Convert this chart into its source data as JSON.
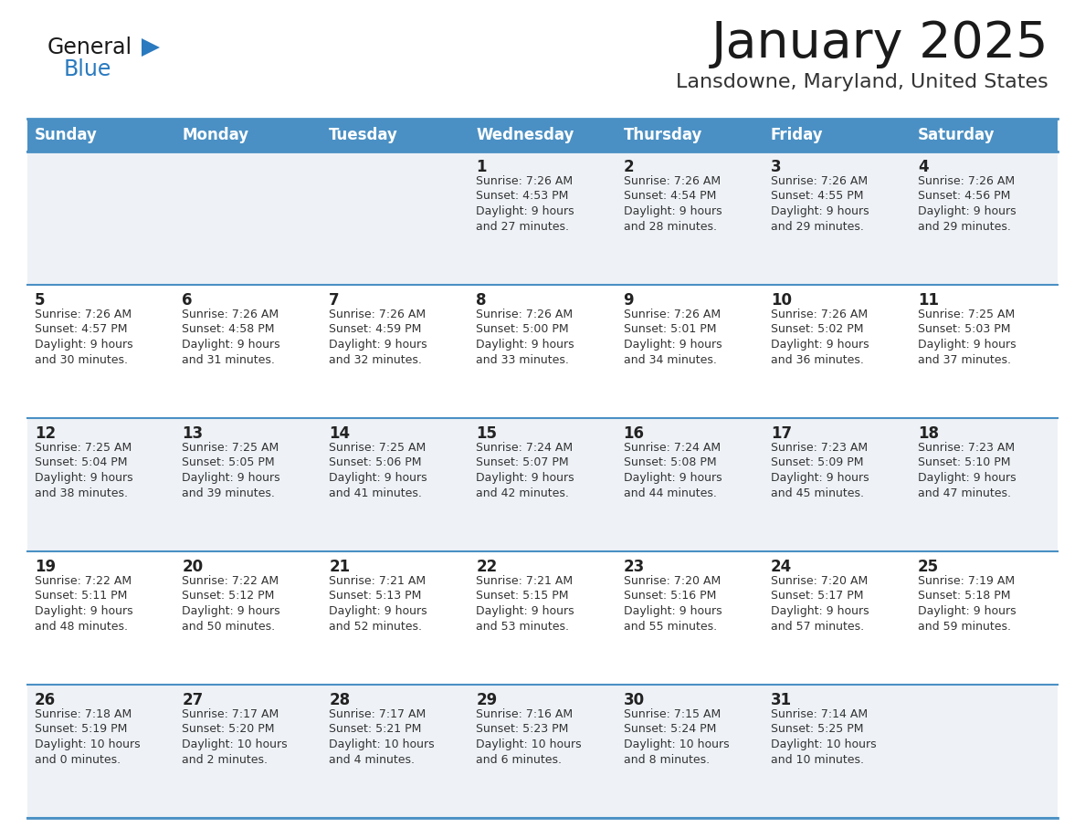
{
  "title": "January 2025",
  "subtitle": "Lansdowne, Maryland, United States",
  "days_of_week": [
    "Sunday",
    "Monday",
    "Tuesday",
    "Wednesday",
    "Thursday",
    "Friday",
    "Saturday"
  ],
  "header_bg": "#4a90c4",
  "header_text": "#ffffff",
  "row_bg_odd": "#eef2f7",
  "row_bg_even": "#ffffff",
  "cell_border": "#4a90c4",
  "day_number_color": "#222222",
  "day_text_color": "#333333",
  "title_color": "#1a1a1a",
  "subtitle_color": "#333333",
  "logo_general_color": "#1a1a1a",
  "logo_blue_color": "#2a7abf",
  "weeks": [
    {
      "days": [
        {
          "date": null,
          "info": null
        },
        {
          "date": null,
          "info": null
        },
        {
          "date": null,
          "info": null
        },
        {
          "date": "1",
          "info": "Sunrise: 7:26 AM\nSunset: 4:53 PM\nDaylight: 9 hours\nand 27 minutes."
        },
        {
          "date": "2",
          "info": "Sunrise: 7:26 AM\nSunset: 4:54 PM\nDaylight: 9 hours\nand 28 minutes."
        },
        {
          "date": "3",
          "info": "Sunrise: 7:26 AM\nSunset: 4:55 PM\nDaylight: 9 hours\nand 29 minutes."
        },
        {
          "date": "4",
          "info": "Sunrise: 7:26 AM\nSunset: 4:56 PM\nDaylight: 9 hours\nand 29 minutes."
        }
      ]
    },
    {
      "days": [
        {
          "date": "5",
          "info": "Sunrise: 7:26 AM\nSunset: 4:57 PM\nDaylight: 9 hours\nand 30 minutes."
        },
        {
          "date": "6",
          "info": "Sunrise: 7:26 AM\nSunset: 4:58 PM\nDaylight: 9 hours\nand 31 minutes."
        },
        {
          "date": "7",
          "info": "Sunrise: 7:26 AM\nSunset: 4:59 PM\nDaylight: 9 hours\nand 32 minutes."
        },
        {
          "date": "8",
          "info": "Sunrise: 7:26 AM\nSunset: 5:00 PM\nDaylight: 9 hours\nand 33 minutes."
        },
        {
          "date": "9",
          "info": "Sunrise: 7:26 AM\nSunset: 5:01 PM\nDaylight: 9 hours\nand 34 minutes."
        },
        {
          "date": "10",
          "info": "Sunrise: 7:26 AM\nSunset: 5:02 PM\nDaylight: 9 hours\nand 36 minutes."
        },
        {
          "date": "11",
          "info": "Sunrise: 7:25 AM\nSunset: 5:03 PM\nDaylight: 9 hours\nand 37 minutes."
        }
      ]
    },
    {
      "days": [
        {
          "date": "12",
          "info": "Sunrise: 7:25 AM\nSunset: 5:04 PM\nDaylight: 9 hours\nand 38 minutes."
        },
        {
          "date": "13",
          "info": "Sunrise: 7:25 AM\nSunset: 5:05 PM\nDaylight: 9 hours\nand 39 minutes."
        },
        {
          "date": "14",
          "info": "Sunrise: 7:25 AM\nSunset: 5:06 PM\nDaylight: 9 hours\nand 41 minutes."
        },
        {
          "date": "15",
          "info": "Sunrise: 7:24 AM\nSunset: 5:07 PM\nDaylight: 9 hours\nand 42 minutes."
        },
        {
          "date": "16",
          "info": "Sunrise: 7:24 AM\nSunset: 5:08 PM\nDaylight: 9 hours\nand 44 minutes."
        },
        {
          "date": "17",
          "info": "Sunrise: 7:23 AM\nSunset: 5:09 PM\nDaylight: 9 hours\nand 45 minutes."
        },
        {
          "date": "18",
          "info": "Sunrise: 7:23 AM\nSunset: 5:10 PM\nDaylight: 9 hours\nand 47 minutes."
        }
      ]
    },
    {
      "days": [
        {
          "date": "19",
          "info": "Sunrise: 7:22 AM\nSunset: 5:11 PM\nDaylight: 9 hours\nand 48 minutes."
        },
        {
          "date": "20",
          "info": "Sunrise: 7:22 AM\nSunset: 5:12 PM\nDaylight: 9 hours\nand 50 minutes."
        },
        {
          "date": "21",
          "info": "Sunrise: 7:21 AM\nSunset: 5:13 PM\nDaylight: 9 hours\nand 52 minutes."
        },
        {
          "date": "22",
          "info": "Sunrise: 7:21 AM\nSunset: 5:15 PM\nDaylight: 9 hours\nand 53 minutes."
        },
        {
          "date": "23",
          "info": "Sunrise: 7:20 AM\nSunset: 5:16 PM\nDaylight: 9 hours\nand 55 minutes."
        },
        {
          "date": "24",
          "info": "Sunrise: 7:20 AM\nSunset: 5:17 PM\nDaylight: 9 hours\nand 57 minutes."
        },
        {
          "date": "25",
          "info": "Sunrise: 7:19 AM\nSunset: 5:18 PM\nDaylight: 9 hours\nand 59 minutes."
        }
      ]
    },
    {
      "days": [
        {
          "date": "26",
          "info": "Sunrise: 7:18 AM\nSunset: 5:19 PM\nDaylight: 10 hours\nand 0 minutes."
        },
        {
          "date": "27",
          "info": "Sunrise: 7:17 AM\nSunset: 5:20 PM\nDaylight: 10 hours\nand 2 minutes."
        },
        {
          "date": "28",
          "info": "Sunrise: 7:17 AM\nSunset: 5:21 PM\nDaylight: 10 hours\nand 4 minutes."
        },
        {
          "date": "29",
          "info": "Sunrise: 7:16 AM\nSunset: 5:23 PM\nDaylight: 10 hours\nand 6 minutes."
        },
        {
          "date": "30",
          "info": "Sunrise: 7:15 AM\nSunset: 5:24 PM\nDaylight: 10 hours\nand 8 minutes."
        },
        {
          "date": "31",
          "info": "Sunrise: 7:14 AM\nSunset: 5:25 PM\nDaylight: 10 hours\nand 10 minutes."
        },
        {
          "date": null,
          "info": null
        }
      ]
    }
  ]
}
